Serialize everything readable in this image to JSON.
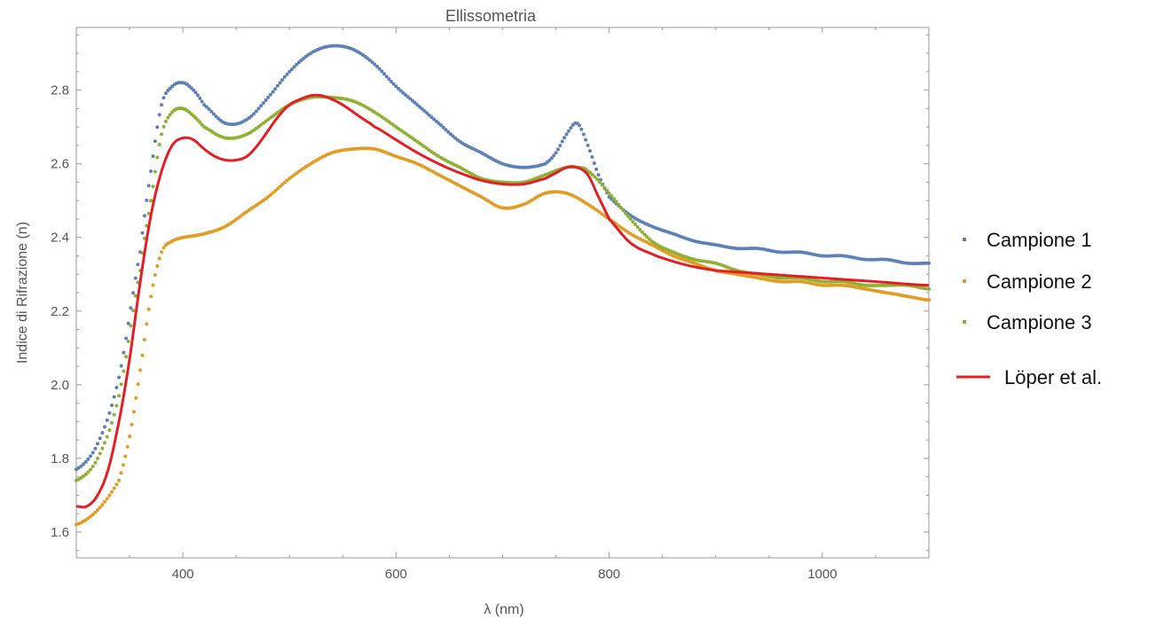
{
  "chart_data": {
    "type": "scatter",
    "title": "Ellissometria",
    "xlabel": "λ (nm)",
    "ylabel": "Indice di Rifrazione (n)",
    "xlim": [
      300,
      1100
    ],
    "ylim": [
      1.53,
      2.97
    ],
    "xticks": [
      400,
      600,
      800,
      1000
    ],
    "yticks": [
      1.6,
      1.8,
      2.0,
      2.2,
      2.4,
      2.6,
      2.8
    ],
    "ytick_labels": [
      "1.6",
      "1.8",
      "2.0",
      "2.2",
      "2.4",
      "2.6",
      "2.8"
    ],
    "grid": false,
    "legend_position": "right",
    "series": [
      {
        "name": "Campione 1",
        "style": "points",
        "color": "#5e81b5",
        "x": [
          300,
          320,
          340,
          360,
          370,
          380,
          390,
          400,
          410,
          420,
          440,
          460,
          480,
          500,
          520,
          540,
          560,
          580,
          600,
          620,
          640,
          660,
          680,
          700,
          720,
          740,
          750,
          760,
          770,
          780,
          790,
          800,
          820,
          840,
          860,
          880,
          900,
          920,
          940,
          960,
          980,
          1000,
          1020,
          1040,
          1060,
          1080,
          1100
        ],
        "y": [
          1.77,
          1.84,
          2.02,
          2.36,
          2.58,
          2.76,
          2.81,
          2.82,
          2.8,
          2.76,
          2.71,
          2.72,
          2.78,
          2.85,
          2.9,
          2.92,
          2.91,
          2.87,
          2.81,
          2.76,
          2.71,
          2.66,
          2.63,
          2.6,
          2.59,
          2.6,
          2.63,
          2.68,
          2.71,
          2.65,
          2.57,
          2.51,
          2.46,
          2.43,
          2.41,
          2.39,
          2.38,
          2.37,
          2.37,
          2.36,
          2.36,
          2.35,
          2.35,
          2.34,
          2.34,
          2.33,
          2.33
        ]
      },
      {
        "name": "Campione 2",
        "style": "points",
        "color": "#e19c24",
        "x": [
          300,
          320,
          340,
          350,
          360,
          370,
          380,
          390,
          400,
          420,
          440,
          460,
          480,
          500,
          520,
          540,
          560,
          580,
          600,
          620,
          640,
          660,
          680,
          700,
          720,
          740,
          760,
          780,
          800,
          820,
          840,
          860,
          880,
          900,
          920,
          940,
          960,
          980,
          1000,
          1020,
          1040,
          1060,
          1080,
          1100
        ],
        "y": [
          1.62,
          1.66,
          1.74,
          1.86,
          2.04,
          2.24,
          2.36,
          2.39,
          2.4,
          2.41,
          2.43,
          2.47,
          2.51,
          2.56,
          2.6,
          2.63,
          2.64,
          2.64,
          2.62,
          2.6,
          2.57,
          2.54,
          2.51,
          2.48,
          2.49,
          2.52,
          2.52,
          2.49,
          2.45,
          2.41,
          2.38,
          2.35,
          2.33,
          2.31,
          2.3,
          2.29,
          2.28,
          2.28,
          2.27,
          2.27,
          2.26,
          2.25,
          2.24,
          2.23
        ]
      },
      {
        "name": "Campione 3",
        "style": "points",
        "color": "#8fb032",
        "x": [
          300,
          320,
          340,
          360,
          370,
          380,
          390,
          400,
          410,
          420,
          440,
          460,
          480,
          500,
          520,
          540,
          560,
          580,
          600,
          620,
          640,
          660,
          680,
          700,
          720,
          740,
          760,
          770,
          780,
          800,
          820,
          840,
          860,
          880,
          900,
          920,
          940,
          960,
          980,
          1000,
          1020,
          1040,
          1060,
          1080,
          1100
        ],
        "y": [
          1.74,
          1.8,
          1.97,
          2.31,
          2.5,
          2.68,
          2.74,
          2.75,
          2.73,
          2.7,
          2.67,
          2.68,
          2.72,
          2.76,
          2.78,
          2.78,
          2.77,
          2.74,
          2.7,
          2.66,
          2.62,
          2.59,
          2.56,
          2.55,
          2.55,
          2.57,
          2.59,
          2.59,
          2.58,
          2.52,
          2.45,
          2.39,
          2.36,
          2.34,
          2.33,
          2.31,
          2.3,
          2.29,
          2.29,
          2.28,
          2.28,
          2.27,
          2.27,
          2.27,
          2.26
        ]
      },
      {
        "name": "Löper et al.",
        "style": "line",
        "color": "#e51e24",
        "x": [
          300,
          310,
          320,
          330,
          340,
          350,
          360,
          370,
          380,
          390,
          400,
          410,
          420,
          430,
          440,
          450,
          460,
          470,
          480,
          490,
          500,
          510,
          520,
          530,
          540,
          550,
          560,
          570,
          580,
          600,
          620,
          640,
          660,
          680,
          700,
          720,
          740,
          750,
          760,
          770,
          780,
          790,
          800,
          820,
          840,
          860,
          880,
          900,
          950,
          1000,
          1050,
          1100
        ],
        "y": [
          1.67,
          1.67,
          1.7,
          1.77,
          1.9,
          2.07,
          2.28,
          2.46,
          2.58,
          2.65,
          2.67,
          2.665,
          2.64,
          2.62,
          2.61,
          2.61,
          2.62,
          2.65,
          2.69,
          2.73,
          2.76,
          2.775,
          2.785,
          2.785,
          2.775,
          2.76,
          2.74,
          2.72,
          2.7,
          2.665,
          2.63,
          2.6,
          2.575,
          2.555,
          2.545,
          2.545,
          2.56,
          2.575,
          2.59,
          2.59,
          2.57,
          2.51,
          2.45,
          2.385,
          2.355,
          2.335,
          2.32,
          2.31,
          2.3,
          2.29,
          2.28,
          2.27
        ]
      }
    ]
  }
}
